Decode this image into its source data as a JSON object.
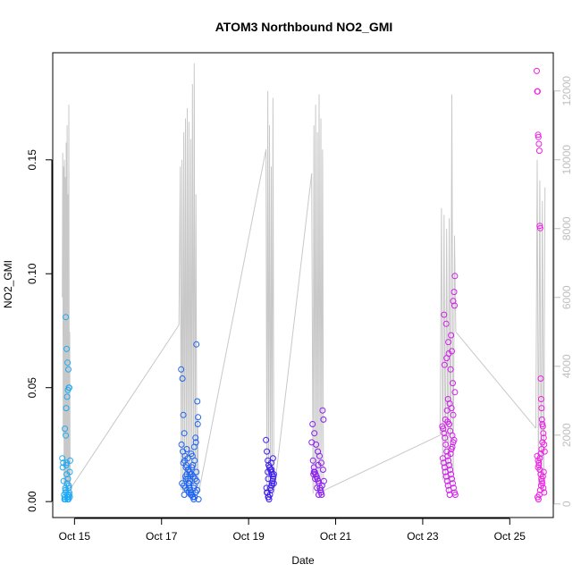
{
  "chart_data": {
    "type": "scatter",
    "title": "ATOM3 Northbound NO2_GMI",
    "xlabel": "Date",
    "ylabel": "NO2_GMI",
    "x_ticks": [
      "Oct 15",
      "Oct 17",
      "Oct 19",
      "Oct 21",
      "Oct 23",
      "Oct 25"
    ],
    "x_tick_days": [
      15,
      17,
      19,
      21,
      23,
      25
    ],
    "xlim": [
      14.5,
      26.0
    ],
    "ylim": [
      -0.007,
      0.197
    ],
    "y_ticks": [
      "0.00",
      "0.05",
      "0.10",
      "0.15"
    ],
    "y_tick_values": [
      0.0,
      0.05,
      0.1,
      0.15
    ],
    "right_ylim": [
      -395,
      13110
    ],
    "right_ticks": [
      "0",
      "2000",
      "4000",
      "6000",
      "8000",
      "10000",
      "12000"
    ],
    "right_tick_values": [
      0,
      2000,
      4000,
      6000,
      8000,
      10000,
      12000
    ],
    "right_axis_color": "#bebebe",
    "line_color": "#c8c8c8",
    "grid": false,
    "legend": "none",
    "colors": [
      "#1eaaf5",
      "#1e64f0",
      "#3c1ef0",
      "#8c1ef0",
      "#d21eeb",
      "#f01ee6"
    ],
    "groups": [
      {
        "color": "#1eaaf5",
        "x": [
          14.72,
          14.74,
          14.76,
          14.77,
          14.78,
          14.79,
          14.8,
          14.81,
          14.82,
          14.83,
          14.84,
          14.85,
          14.86,
          14.87,
          14.88,
          14.89,
          14.9,
          14.78,
          14.8,
          14.82,
          14.84,
          14.86,
          14.88,
          14.73,
          14.75,
          14.79,
          14.81,
          14.83,
          14.85,
          14.87,
          14.89,
          14.8,
          14.84,
          14.88,
          14.82,
          14.86,
          14.79,
          14.83,
          14.87,
          14.85
        ],
        "y": [
          0.019,
          0.017,
          0.003,
          0.001,
          0.002,
          0.005,
          0.004,
          0.016,
          0.012,
          0.008,
          0.003,
          0.001,
          0.002,
          0.007,
          0.004,
          0.013,
          0.018,
          0.032,
          0.081,
          0.067,
          0.061,
          0.058,
          0.05,
          0.015,
          0.009,
          0.006,
          0.041,
          0.046,
          0.049,
          0.05,
          0.002,
          0.029,
          0.001,
          0.003,
          0.017,
          0.001,
          0.001,
          0.002,
          0.006,
          0.01
        ]
      },
      {
        "color": "#1e64f0",
        "x": [
          17.45,
          17.48,
          17.5,
          17.52,
          17.54,
          17.56,
          17.58,
          17.6,
          17.62,
          17.64,
          17.66,
          17.68,
          17.7,
          17.72,
          17.74,
          17.76,
          17.78,
          17.8,
          17.82,
          17.84,
          17.46,
          17.49,
          17.53,
          17.57,
          17.61,
          17.65,
          17.69,
          17.73,
          17.77,
          17.81,
          17.47,
          17.51,
          17.55,
          17.59,
          17.63,
          17.67,
          17.71,
          17.75,
          17.79,
          17.83,
          17.5,
          17.6,
          17.7,
          17.8,
          17.55,
          17.65,
          17.75,
          17.85,
          17.58,
          17.68,
          17.78,
          17.62,
          17.72,
          17.82,
          17.52,
          17.66,
          17.76,
          17.56,
          17.64,
          17.74
        ],
        "y": [
          0.058,
          0.054,
          0.038,
          0.03,
          0.02,
          0.015,
          0.012,
          0.01,
          0.008,
          0.006,
          0.005,
          0.004,
          0.003,
          0.002,
          0.001,
          0.002,
          0.004,
          0.069,
          0.044,
          0.037,
          0.025,
          0.022,
          0.018,
          0.016,
          0.014,
          0.013,
          0.012,
          0.011,
          0.01,
          0.009,
          0.008,
          0.007,
          0.006,
          0.005,
          0.004,
          0.003,
          0.02,
          0.024,
          0.026,
          0.034,
          0.017,
          0.019,
          0.015,
          0.013,
          0.011,
          0.009,
          0.007,
          0.001,
          0.023,
          0.021,
          0.028,
          0.014,
          0.016,
          0.005,
          0.003,
          0.012,
          0.018,
          0.01,
          0.008,
          0.006
        ]
      },
      {
        "color": "#3c1ef0",
        "x": [
          19.4,
          19.42,
          19.44,
          19.46,
          19.48,
          19.5,
          19.52,
          19.54,
          19.56,
          19.58,
          19.41,
          19.43,
          19.45,
          19.47,
          19.49,
          19.51,
          19.53,
          19.55,
          19.57,
          19.44,
          19.48,
          19.52,
          19.56,
          19.42,
          19.46,
          19.5,
          19.54,
          19.58,
          19.45,
          19.53
        ],
        "y": [
          0.027,
          0.022,
          0.018,
          0.016,
          0.015,
          0.014,
          0.013,
          0.012,
          0.01,
          0.008,
          0.006,
          0.004,
          0.002,
          0.001,
          0.003,
          0.005,
          0.007,
          0.009,
          0.011,
          0.013,
          0.015,
          0.017,
          0.019,
          0.004,
          0.002,
          0.006,
          0.008,
          0.012,
          0.01,
          0.014
        ]
      },
      {
        "color": "#8c1ef0",
        "x": [
          20.45,
          20.48,
          20.5,
          20.52,
          20.54,
          20.56,
          20.58,
          20.6,
          20.62,
          20.64,
          20.66,
          20.68,
          20.7,
          20.72,
          20.47,
          20.51,
          20.55,
          20.59,
          20.63,
          20.67,
          20.71,
          20.49,
          20.53,
          20.57,
          20.61,
          20.65,
          20.69,
          20.73,
          20.5,
          20.6
        ],
        "y": [
          0.026,
          0.018,
          0.015,
          0.013,
          0.012,
          0.011,
          0.01,
          0.009,
          0.008,
          0.006,
          0.004,
          0.003,
          0.04,
          0.036,
          0.034,
          0.03,
          0.025,
          0.022,
          0.02,
          0.017,
          0.014,
          0.012,
          0.01,
          0.006,
          0.003,
          0.005,
          0.007,
          0.009,
          0.013,
          0.016
        ]
      },
      {
        "color": "#d21eeb",
        "x": [
          23.45,
          23.47,
          23.49,
          23.51,
          23.53,
          23.55,
          23.57,
          23.59,
          23.61,
          23.63,
          23.65,
          23.67,
          23.69,
          23.71,
          23.73,
          23.75,
          23.46,
          23.48,
          23.5,
          23.52,
          23.54,
          23.56,
          23.58,
          23.6,
          23.62,
          23.64,
          23.66,
          23.68,
          23.7,
          23.72,
          23.5,
          23.55,
          23.6,
          23.65,
          23.7,
          23.74,
          23.58,
          23.62,
          23.66,
          23.7,
          23.52,
          23.57,
          23.63,
          23.68,
          23.73,
          23.49,
          23.54,
          23.59,
          23.64,
          23.69,
          23.74,
          23.56,
          23.61,
          23.67,
          23.72
        ],
        "y": [
          0.033,
          0.032,
          0.03,
          0.028,
          0.025,
          0.022,
          0.02,
          0.018,
          0.016,
          0.014,
          0.012,
          0.01,
          0.008,
          0.006,
          0.004,
          0.003,
          0.019,
          0.017,
          0.015,
          0.013,
          0.011,
          0.009,
          0.007,
          0.005,
          0.003,
          0.021,
          0.023,
          0.024,
          0.026,
          0.027,
          0.06,
          0.063,
          0.065,
          0.073,
          0.088,
          0.099,
          0.045,
          0.043,
          0.041,
          0.038,
          0.036,
          0.035,
          0.031,
          0.029,
          0.086,
          0.082,
          0.078,
          0.07,
          0.058,
          0.052,
          0.048,
          0.04,
          0.034,
          0.066,
          0.092
        ]
      },
      {
        "color": "#f01ee6",
        "x": [
          25.62,
          25.63,
          25.64,
          25.65,
          25.66,
          25.67,
          25.68,
          25.69,
          25.7,
          25.71,
          25.72,
          25.73,
          25.74,
          25.75,
          25.76,
          25.77,
          25.78,
          25.79,
          25.8,
          25.63,
          25.65,
          25.67,
          25.69,
          25.71,
          25.73,
          25.75,
          25.77,
          25.79,
          25.64,
          25.66,
          25.68,
          25.7,
          25.72,
          25.74,
          25.76,
          25.78,
          25.65,
          25.67,
          25.69,
          25.71,
          25.73,
          25.75
        ],
        "y": [
          0.189,
          0.18,
          0.18,
          0.161,
          0.16,
          0.157,
          0.154,
          0.121,
          0.12,
          0.054,
          0.045,
          0.041,
          0.036,
          0.034,
          0.033,
          0.03,
          0.028,
          0.025,
          0.022,
          0.02,
          0.018,
          0.016,
          0.014,
          0.012,
          0.01,
          0.008,
          0.006,
          0.004,
          0.002,
          0.001,
          0.003,
          0.005,
          0.007,
          0.009,
          0.011,
          0.013,
          0.015,
          0.017,
          0.019,
          0.021,
          0.023,
          0.026
        ]
      }
    ],
    "altitude": {
      "axis": "right",
      "color": "#c8c8c8",
      "segments": [
        {
          "x": [
            14.72,
            14.73,
            14.74,
            14.75,
            14.76,
            14.77,
            14.78,
            14.79,
            14.8,
            14.81,
            14.82,
            14.83,
            14.84,
            14.85,
            14.86,
            14.87,
            14.88,
            14.89,
            14.9,
            14.91
          ],
          "y": [
            6000,
            10200,
            2000,
            9800,
            500,
            10000,
            300,
            9500,
            200,
            10500,
            400,
            11000,
            600,
            9000,
            300,
            11600,
            500,
            5000,
            200,
            450
          ]
        },
        {
          "x": [
            14.91,
            17.4
          ],
          "y": [
            450,
            5200
          ]
        },
        {
          "x": [
            17.4,
            17.43,
            17.45,
            17.47,
            17.49,
            17.51,
            17.53,
            17.55,
            17.57,
            17.59,
            17.61,
            17.63,
            17.65,
            17.67,
            17.69,
            17.71,
            17.73,
            17.75,
            17.77,
            17.79,
            17.81,
            17.83,
            17.85
          ],
          "y": [
            5200,
            9800,
            400,
            10000,
            300,
            10800,
            500,
            11200,
            200,
            11500,
            400,
            11100,
            600,
            10600,
            300,
            12200,
            500,
            12800,
            200,
            9000,
            400,
            2500,
            300
          ]
        },
        {
          "x": [
            17.85,
            19.4
          ],
          "y": [
            300,
            10300
          ]
        },
        {
          "x": [
            19.4,
            19.42,
            19.44,
            19.46,
            19.48,
            19.5,
            19.52,
            19.54,
            19.56,
            19.58,
            19.6
          ],
          "y": [
            10300,
            300,
            12000,
            500,
            11000,
            200,
            9800,
            400,
            11800,
            300,
            500
          ]
        },
        {
          "x": [
            19.6,
            20.45
          ],
          "y": [
            500,
            9600
          ]
        },
        {
          "x": [
            20.45,
            20.48,
            20.5,
            20.52,
            20.54,
            20.56,
            20.58,
            20.6,
            20.62,
            20.64,
            20.66,
            20.68,
            20.7,
            20.72,
            20.74
          ],
          "y": [
            9600,
            300,
            11000,
            500,
            11600,
            200,
            10800,
            400,
            11900,
            300,
            11200,
            600,
            10300,
            200,
            400
          ]
        },
        {
          "x": [
            20.74,
            23.4
          ],
          "y": [
            400,
            2000
          ]
        },
        {
          "x": [
            23.4,
            23.43,
            23.46,
            23.49,
            23.52,
            23.55,
            23.58,
            23.61,
            23.64,
            23.67,
            23.7,
            23.73,
            23.76
          ],
          "y": [
            2000,
            8600,
            700,
            8400,
            500,
            8000,
            300,
            8300,
            600,
            11900,
            500,
            7800,
            5000
          ]
        },
        {
          "x": [
            23.76,
            25.6
          ],
          "y": [
            5000,
            2200
          ]
        },
        {
          "x": [
            25.6,
            25.63,
            25.66,
            25.69,
            25.72,
            25.75,
            25.78,
            25.81
          ],
          "y": [
            2200,
            10000,
            500,
            9400,
            400,
            8800,
            300,
            9200
          ]
        }
      ]
    }
  }
}
